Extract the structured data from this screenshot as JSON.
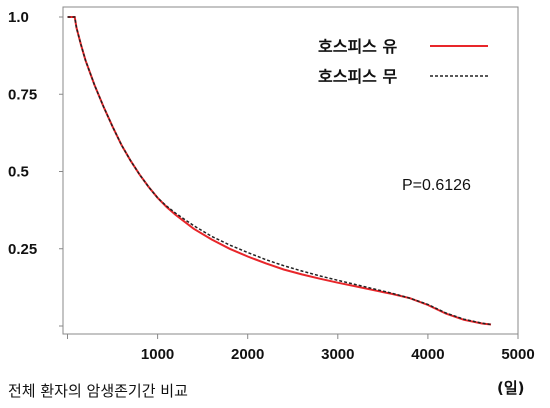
{
  "chart_data": {
    "type": "line",
    "title": "",
    "xlabel": "(일)",
    "ylabel": "",
    "xlim": [
      -50,
      5000
    ],
    "ylim": [
      0,
      1.0
    ],
    "x_ticks": [
      1000,
      2000,
      3000,
      4000,
      5000
    ],
    "y_ticks": [
      {
        "value": 1.0,
        "label": "1.0"
      },
      {
        "value": 0.75,
        "label": "0.75"
      },
      {
        "value": 0.5,
        "label": "0.5"
      },
      {
        "value": 0.25,
        "label": "0.25"
      }
    ],
    "grid": false,
    "legend_position": "top-right",
    "series": [
      {
        "name": "호스피스 유",
        "color": "#e8262a",
        "style": "solid",
        "points": [
          [
            0,
            1.0
          ],
          [
            80,
            1.0
          ],
          [
            100,
            0.965
          ],
          [
            150,
            0.91
          ],
          [
            200,
            0.86
          ],
          [
            300,
            0.78
          ],
          [
            400,
            0.71
          ],
          [
            500,
            0.645
          ],
          [
            600,
            0.585
          ],
          [
            700,
            0.535
          ],
          [
            800,
            0.49
          ],
          [
            900,
            0.45
          ],
          [
            1000,
            0.415
          ],
          [
            1100,
            0.385
          ],
          [
            1200,
            0.36
          ],
          [
            1400,
            0.315
          ],
          [
            1600,
            0.28
          ],
          [
            1800,
            0.25
          ],
          [
            2000,
            0.225
          ],
          [
            2200,
            0.203
          ],
          [
            2400,
            0.183
          ],
          [
            2600,
            0.167
          ],
          [
            2800,
            0.153
          ],
          [
            3000,
            0.14
          ],
          [
            3200,
            0.128
          ],
          [
            3400,
            0.116
          ],
          [
            3600,
            0.104
          ],
          [
            3800,
            0.09
          ],
          [
            4000,
            0.068
          ],
          [
            4200,
            0.04
          ],
          [
            4400,
            0.02
          ],
          [
            4600,
            0.008
          ],
          [
            4700,
            0.005
          ]
        ]
      },
      {
        "name": "호스피스 무",
        "color": "#222222",
        "style": "dashed",
        "points": [
          [
            0,
            1.0
          ],
          [
            80,
            1.0
          ],
          [
            100,
            0.965
          ],
          [
            150,
            0.91
          ],
          [
            200,
            0.86
          ],
          [
            300,
            0.78
          ],
          [
            400,
            0.71
          ],
          [
            500,
            0.645
          ],
          [
            600,
            0.585
          ],
          [
            700,
            0.535
          ],
          [
            800,
            0.49
          ],
          [
            900,
            0.45
          ],
          [
            1000,
            0.415
          ],
          [
            1100,
            0.388
          ],
          [
            1200,
            0.365
          ],
          [
            1400,
            0.325
          ],
          [
            1600,
            0.29
          ],
          [
            1800,
            0.262
          ],
          [
            2000,
            0.238
          ],
          [
            2200,
            0.215
          ],
          [
            2400,
            0.195
          ],
          [
            2600,
            0.178
          ],
          [
            2800,
            0.162
          ],
          [
            3000,
            0.148
          ],
          [
            3200,
            0.134
          ],
          [
            3400,
            0.12
          ],
          [
            3600,
            0.106
          ],
          [
            3800,
            0.09
          ],
          [
            4000,
            0.07
          ],
          [
            4200,
            0.042
          ],
          [
            4400,
            0.022
          ],
          [
            4600,
            0.009
          ],
          [
            4700,
            0.005
          ]
        ]
      }
    ],
    "annotations": [
      "P=0.6126"
    ]
  },
  "caption": "전체 환자의 암생존기간 비교"
}
